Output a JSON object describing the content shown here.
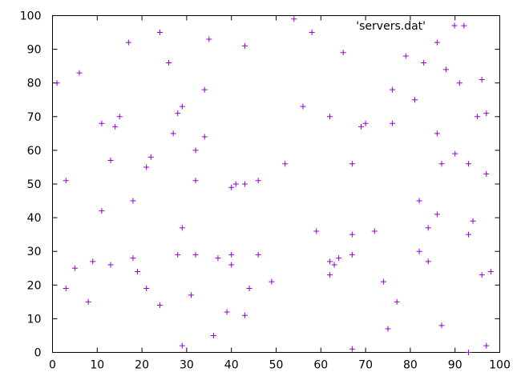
{
  "chart_data": {
    "type": "scatter",
    "title": "",
    "xlabel": "",
    "ylabel": "",
    "xlim": [
      0,
      100
    ],
    "ylim": [
      0,
      100
    ],
    "xticks": [
      0,
      10,
      20,
      30,
      40,
      50,
      60,
      70,
      80,
      90,
      100
    ],
    "yticks": [
      0,
      10,
      20,
      30,
      40,
      50,
      60,
      70,
      80,
      90,
      100
    ],
    "grid": false,
    "legend_position": "top-right",
    "color": "#9400d3",
    "marker": "plus",
    "series": [
      {
        "name": "'servers.dat'",
        "points": [
          [
            1,
            80
          ],
          [
            3,
            51
          ],
          [
            3,
            19
          ],
          [
            5,
            25
          ],
          [
            6,
            83
          ],
          [
            8,
            15
          ],
          [
            9,
            27
          ],
          [
            11,
            68
          ],
          [
            11,
            42
          ],
          [
            13,
            57
          ],
          [
            13,
            26
          ],
          [
            14,
            67
          ],
          [
            15,
            70
          ],
          [
            17,
            92
          ],
          [
            18,
            45
          ],
          [
            18,
            28
          ],
          [
            19,
            24
          ],
          [
            21,
            55
          ],
          [
            21,
            19
          ],
          [
            22,
            58
          ],
          [
            24,
            95
          ],
          [
            24,
            14
          ],
          [
            26,
            86
          ],
          [
            27,
            65
          ],
          [
            28,
            71
          ],
          [
            28,
            29
          ],
          [
            29,
            73
          ],
          [
            29,
            37
          ],
          [
            29,
            2
          ],
          [
            31,
            17
          ],
          [
            32,
            60
          ],
          [
            32,
            51
          ],
          [
            32,
            29
          ],
          [
            34,
            78
          ],
          [
            34,
            64
          ],
          [
            35,
            93
          ],
          [
            36,
            5
          ],
          [
            37,
            28
          ],
          [
            39,
            12
          ],
          [
            40,
            49
          ],
          [
            40,
            29
          ],
          [
            40,
            26
          ],
          [
            41,
            50
          ],
          [
            43,
            91
          ],
          [
            43,
            50
          ],
          [
            43,
            11
          ],
          [
            44,
            19
          ],
          [
            46,
            51
          ],
          [
            46,
            29
          ],
          [
            49,
            21
          ],
          [
            52,
            56
          ],
          [
            54,
            99
          ],
          [
            56,
            73
          ],
          [
            58,
            95
          ],
          [
            59,
            36
          ],
          [
            62,
            70
          ],
          [
            62,
            27
          ],
          [
            62,
            23
          ],
          [
            63,
            26
          ],
          [
            64,
            28
          ],
          [
            65,
            89
          ],
          [
            67,
            56
          ],
          [
            67,
            35
          ],
          [
            67,
            29
          ],
          [
            67,
            1
          ],
          [
            69,
            67
          ],
          [
            70,
            68
          ],
          [
            72,
            36
          ],
          [
            74,
            21
          ],
          [
            75,
            7
          ],
          [
            76,
            78
          ],
          [
            76,
            68
          ],
          [
            77,
            15
          ],
          [
            79,
            88
          ],
          [
            81,
            75
          ],
          [
            82,
            45
          ],
          [
            82,
            30
          ],
          [
            83,
            86
          ],
          [
            84,
            37
          ],
          [
            84,
            27
          ],
          [
            86,
            92
          ],
          [
            86,
            65
          ],
          [
            86,
            41
          ],
          [
            87,
            56
          ],
          [
            87,
            8
          ],
          [
            88,
            84
          ],
          [
            90,
            59
          ],
          [
            91,
            80
          ],
          [
            92,
            97
          ],
          [
            93,
            56
          ],
          [
            93,
            35
          ],
          [
            93,
            0
          ],
          [
            94,
            39
          ],
          [
            95,
            70
          ],
          [
            96,
            81
          ],
          [
            96,
            23
          ],
          [
            97,
            71
          ],
          [
            97,
            53
          ],
          [
            97,
            2
          ],
          [
            98,
            24
          ]
        ]
      }
    ]
  }
}
